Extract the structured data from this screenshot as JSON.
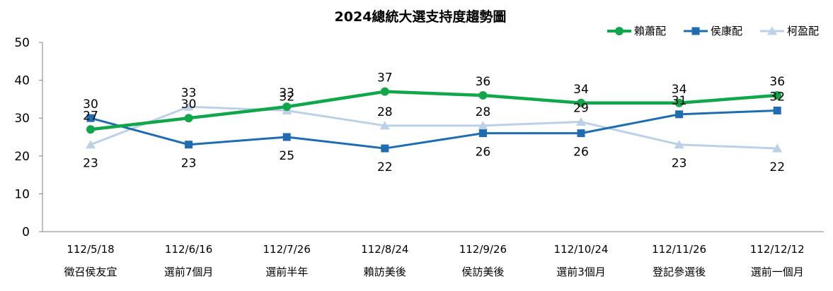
{
  "chart_data": {
    "type": "line",
    "title": "2024總統大選支持度趨勢圖",
    "categories": [
      {
        "date": "112/5/18",
        "event": "徵召侯友宜"
      },
      {
        "date": "112/6/16",
        "event": "選前7個月"
      },
      {
        "date": "112/7/26",
        "event": "選前半年"
      },
      {
        "date": "112/8/24",
        "event": "賴訪美後"
      },
      {
        "date": "112/9/26",
        "event": "侯訪美後"
      },
      {
        "date": "112/10/24",
        "event": "選前3個月"
      },
      {
        "date": "112/11/26",
        "event": "登記參選後"
      },
      {
        "date": "112/12/12",
        "event": "選前一個月"
      }
    ],
    "ylim": [
      0,
      50
    ],
    "yticks": [
      0,
      10,
      20,
      30,
      40,
      50
    ],
    "grid": false,
    "legend_position": "top-right",
    "series": [
      {
        "name": "賴蕭配",
        "color": "#10a64a",
        "marker": "circle",
        "values": [
          27,
          30,
          33,
          37,
          36,
          34,
          34,
          36
        ]
      },
      {
        "name": "侯康配",
        "color": "#1f6cb0",
        "marker": "square",
        "values": [
          30,
          23,
          25,
          22,
          26,
          26,
          31,
          32
        ]
      },
      {
        "name": "柯盈配",
        "color": "#bcd0e6",
        "marker": "triangle",
        "values": [
          23,
          33,
          32,
          28,
          28,
          29,
          23,
          22
        ]
      }
    ]
  }
}
